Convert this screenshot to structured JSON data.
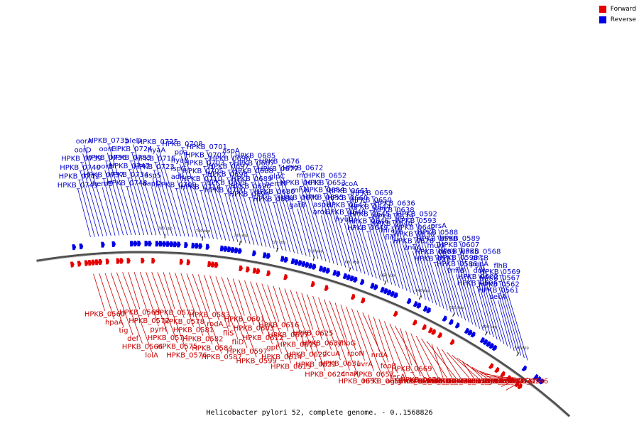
{
  "caption": "Helicobacter pylori 52, complete genome. - 0..1568826",
  "legend": [
    {
      "label": "Forward",
      "color": "#e60000"
    },
    {
      "label": "Reverse",
      "color": "#0000e6"
    }
  ],
  "ticks": [
    "580 kbp",
    "600 kbp",
    "620 kbp",
    "640 kbp",
    "660 kbp",
    "680 kbp",
    "700 kbp",
    "720 kbp",
    "740 kbp",
    "760 kbp",
    "780 kbp"
  ],
  "outer_labels": [
    "HPKB_0749",
    "HPKB_0741",
    "HPKB_0740",
    "HPKB_0739",
    "oorD",
    "oorA",
    "hemE",
    "HPKB_0737",
    "oorB",
    "HPKB_0736",
    "oorC",
    "HPKB_0735",
    "HPKB_0748",
    "HPKB_0734",
    "HPKB_0747",
    "HPKB_0733",
    "HPKB_0724",
    "pleD",
    "dapD",
    "aspS",
    "HPKB_0723",
    "HPKB_0715",
    "hyaA",
    "HPKB_0725",
    "HPKB_0709",
    "adk",
    "ispG",
    "hyaB",
    "ppa",
    "HPKB_0708",
    "HPKB_0714",
    "HPKB_0710",
    "HPKB_0705",
    "HPKB_0703",
    "HPKB_0702",
    "HPKB_0701",
    "HPKB_0700",
    "HPKB_0699",
    "HPKB_0698",
    "HPKB_0697",
    "HPKB_0696",
    "aspA",
    "HPKB_0694",
    "HPKB_0690",
    "HPKB_0689",
    "HPKB_0688",
    "HPKB_0687",
    "HPKB_0685",
    "HPKB_0684",
    "HPKB_0680",
    "hemN",
    "glpC",
    "HPKB_0677",
    "HPKB_0676",
    "gatB",
    "HPKB_0675",
    "rnhA",
    "HPKB_0673",
    "rnc",
    "HPKB_0672",
    "aroC",
    "aspB",
    "HPKB_0655",
    "HPKB_0654",
    "HPKB_0653",
    "HPKB_0652",
    "hyuB",
    "HPKB_0648",
    "HPKB_0647",
    "HPKB_0660",
    "HPKB_0661",
    "scoA",
    "HPKB_0649",
    "HPKB_0646",
    "HPKB_0645",
    "HPKB_0644",
    "HPKB_0650",
    "HPKB_0659",
    "fliP",
    "mraW",
    "HPKB_0640",
    "HPKB_0639",
    "HPKB_0638",
    "HPKB_0636",
    "znuA",
    "HPKB_0628",
    "HPKB_0630",
    "HPKB_0642",
    "HPKB_0593",
    "HPKB_0592",
    "HPKB_0591",
    "HPKB_0609",
    "murF",
    "HPKB_0590",
    "HPKB_0588",
    "prsA",
    "trmB",
    "HPKB_0586",
    "HPKB_0598",
    "HPKB_0585",
    "HPKB_0607",
    "HPKB_0589",
    "HPKB_0596",
    "HPKB_0602",
    "ddl",
    "pgpA",
    "ansB",
    "HPKB_0568",
    "secA",
    "HPKB_0561",
    "HPKB_0562",
    "HPKB_0567",
    "HPKB_0569",
    "flhB"
  ],
  "inner_labels": [
    "HPKB_0560",
    "hpaA",
    "tig",
    "def",
    "HPKB_0566",
    "lolA",
    "HPKB_0565",
    "HPKB_0572",
    "pyrH",
    "HPKB_0574",
    "HPKB_0575",
    "HPKB_0576",
    "HPKB_0577",
    "HPKB_0578",
    "HPKB_0581",
    "HPKB_0582",
    "HPKB_0584",
    "HPKB_0587",
    "HPKB_0583",
    "rodA_1",
    "fliS",
    "fliD",
    "HPKB_0597",
    "HPKB_0599",
    "HPKB_0601",
    "HPKB_0603",
    "HPKB_0612",
    "gpt",
    "HPKB_0614",
    "HPKB_0615",
    "HPKB_0616",
    "HPKB_0617",
    "HPKB_0619",
    "HPKB_0622",
    "HPKB_0623",
    "HPKB_0624",
    "HPKB_0625",
    "HPKB_0637",
    "dcuA",
    "HPKB_0631",
    "dnaX",
    "HPKB_0633",
    "yhbG",
    "rpoN",
    "uvrA",
    "HPKB_0657",
    "HPKB_0658",
    "ogt",
    "nrdA",
    "feoB",
    "fecA",
    "glmU",
    "HPKB_0666",
    "HPKB_0667",
    "HPKB_0669",
    "HPKB_0670",
    "HPKB_0691",
    "HPKB_0692",
    "HPKB_0693",
    "HPKB_0707",
    "HPKB_0704",
    "HPKB_0706",
    "HPKB_0713",
    "HPKB_0718",
    "murC",
    "HPKB_0720",
    "HPKB_0721",
    "HPKB_0732",
    "ligA",
    "HPKB_0730",
    "HPKB_0731",
    "HPKB_0742",
    "HPKB_0743",
    "HPKB_0744",
    "HPKB_0745",
    "HPKB_0746"
  ]
}
